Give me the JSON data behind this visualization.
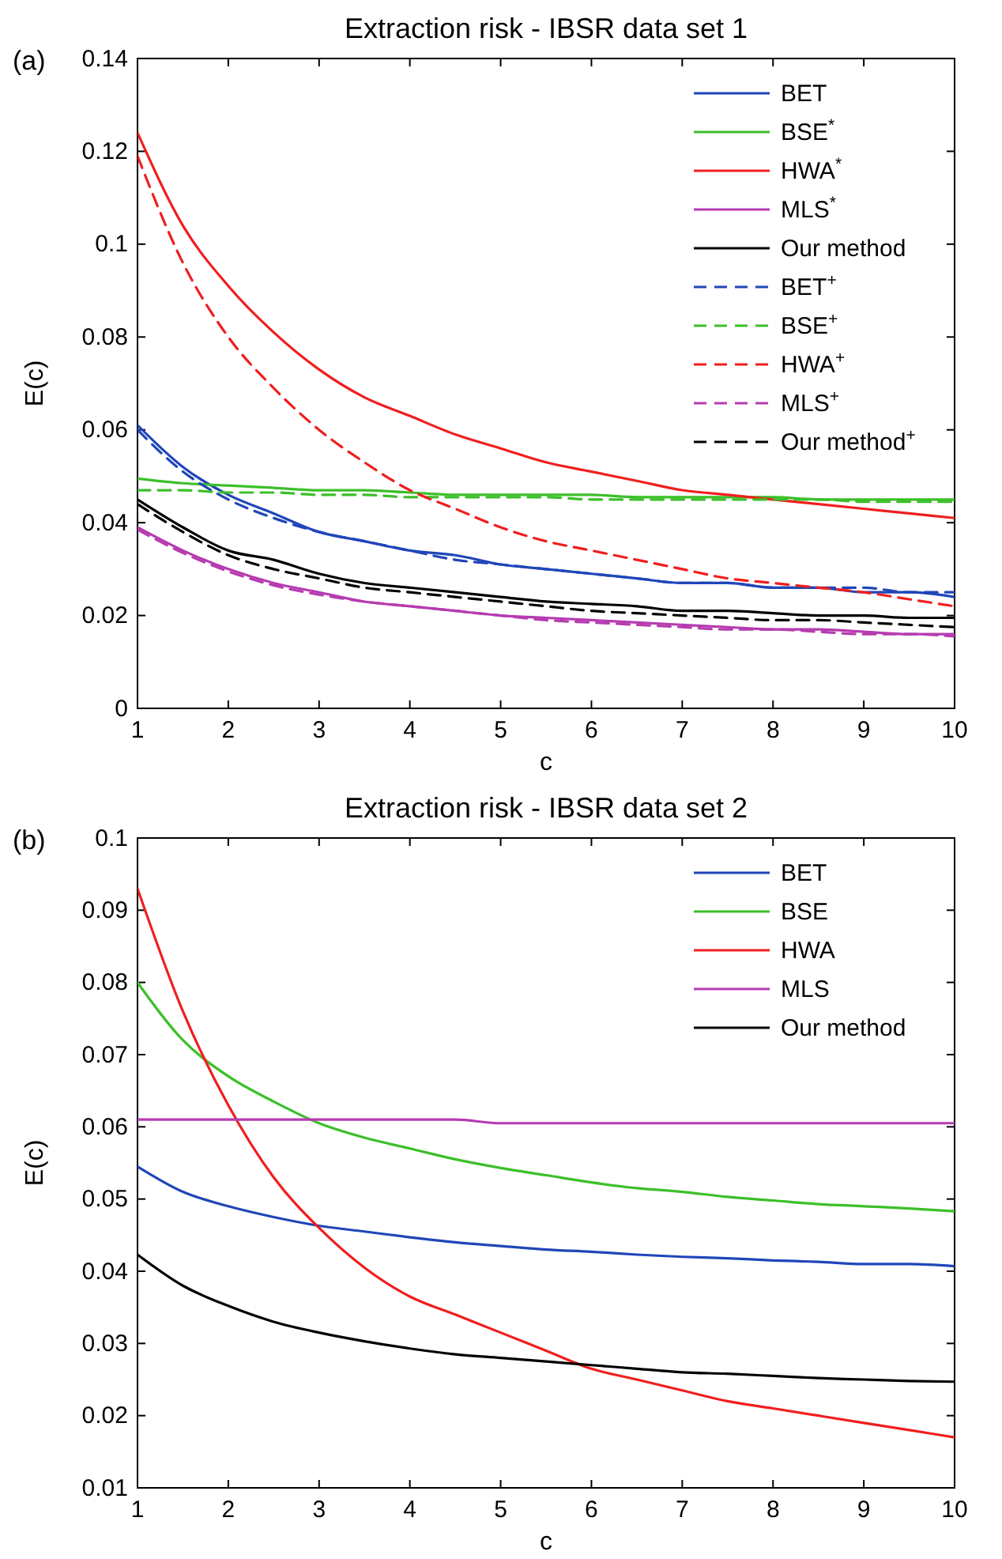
{
  "chart_data": [
    {
      "type": "line",
      "title": "Extraction risk - IBSR data set 1",
      "xlabel": "c",
      "ylabel": "E(c)",
      "annotations": [
        "(a)"
      ],
      "x": [
        1,
        1.5,
        2,
        2.5,
        3,
        3.5,
        4,
        4.5,
        5,
        5.5,
        6,
        6.5,
        7,
        7.5,
        8,
        8.5,
        9,
        9.5,
        10
      ],
      "xlim": [
        1,
        10
      ],
      "xticks": [
        1,
        2,
        3,
        4,
        5,
        6,
        7,
        8,
        9,
        10
      ],
      "ylim": [
        0,
        0.14
      ],
      "yticks": [
        0,
        0.02,
        0.04,
        0.06,
        0.08,
        0.1,
        0.12,
        0.14
      ],
      "legend": "top right",
      "grid": false,
      "series": [
        {
          "name": "BET",
          "color": "#2046b8",
          "line_style": "solid",
          "values": [
            0.061,
            0.052,
            0.046,
            0.042,
            0.038,
            0.036,
            0.034,
            0.033,
            0.031,
            0.03,
            0.029,
            0.028,
            0.027,
            0.027,
            0.026,
            0.026,
            0.025,
            0.025,
            0.024
          ]
        },
        {
          "name": "BSE$^{*}$",
          "color": "#3cbf2a",
          "line_style": "solid",
          "values": [
            0.0495,
            0.0485,
            0.048,
            0.0475,
            0.047,
            0.047,
            0.0465,
            0.046,
            0.046,
            0.046,
            0.046,
            0.0455,
            0.0455,
            0.0455,
            0.0455,
            0.045,
            0.045,
            0.045,
            0.045
          ]
        },
        {
          "name": "HWA$^{*}$",
          "color": "#f01e1e",
          "line_style": "solid",
          "values": [
            0.124,
            0.104,
            0.091,
            0.081,
            0.073,
            0.067,
            0.063,
            0.059,
            0.056,
            0.053,
            0.051,
            0.049,
            0.047,
            0.046,
            0.045,
            0.044,
            0.043,
            0.042,
            0.041
          ]
        },
        {
          "name": "MLS$^{*}$",
          "color": "#b63cb0",
          "line_style": "solid",
          "values": [
            0.039,
            0.034,
            0.03,
            0.027,
            0.025,
            0.023,
            0.022,
            0.021,
            0.02,
            0.0195,
            0.019,
            0.0185,
            0.018,
            0.0175,
            0.017,
            0.017,
            0.0165,
            0.016,
            0.016
          ]
        },
        {
          "name": "Our method",
          "color": "#000000",
          "line_style": "solid",
          "values": [
            0.045,
            0.039,
            0.034,
            0.032,
            0.029,
            0.027,
            0.026,
            0.025,
            0.024,
            0.023,
            0.0225,
            0.022,
            0.021,
            0.021,
            0.0205,
            0.02,
            0.02,
            0.0195,
            0.0195
          ]
        },
        {
          "name": "BET$^{+}$",
          "color": "#2046b8",
          "line_style": "dashed",
          "values": [
            0.06,
            0.051,
            0.045,
            0.041,
            0.038,
            0.036,
            0.034,
            0.032,
            0.031,
            0.03,
            0.029,
            0.028,
            0.027,
            0.027,
            0.026,
            0.026,
            0.026,
            0.025,
            0.025
          ]
        },
        {
          "name": "BSE$^{+}$",
          "color": "#3cbf2a",
          "line_style": "dashed",
          "values": [
            0.047,
            0.047,
            0.0465,
            0.0465,
            0.046,
            0.046,
            0.0455,
            0.0455,
            0.0455,
            0.0455,
            0.045,
            0.045,
            0.045,
            0.045,
            0.045,
            0.045,
            0.0445,
            0.0445,
            0.0445
          ]
        },
        {
          "name": "HWA$^{+}$",
          "color": "#f01e1e",
          "line_style": "dashed",
          "values": [
            0.119,
            0.096,
            0.08,
            0.069,
            0.06,
            0.053,
            0.047,
            0.043,
            0.039,
            0.036,
            0.034,
            0.032,
            0.03,
            0.028,
            0.027,
            0.026,
            0.025,
            0.0235,
            0.022
          ]
        },
        {
          "name": "MLS$^{+}$",
          "color": "#b63cb0",
          "line_style": "dashed",
          "values": [
            0.0385,
            0.0335,
            0.0295,
            0.0265,
            0.0245,
            0.023,
            0.022,
            0.021,
            0.02,
            0.019,
            0.0185,
            0.018,
            0.0175,
            0.017,
            0.017,
            0.0165,
            0.016,
            0.016,
            0.0155
          ]
        },
        {
          "name": "Our method$^{+}$",
          "color": "#000000",
          "line_style": "dashed",
          "values": [
            0.044,
            0.038,
            0.033,
            0.03,
            0.028,
            0.026,
            0.025,
            0.024,
            0.023,
            0.022,
            0.021,
            0.0205,
            0.02,
            0.0195,
            0.019,
            0.019,
            0.0185,
            0.018,
            0.0175
          ]
        }
      ]
    },
    {
      "type": "line",
      "title": "Extraction risk - IBSR data set 2",
      "xlabel": "c",
      "ylabel": "E(c)",
      "annotations": [
        "(b)"
      ],
      "x": [
        1,
        1.5,
        2,
        2.5,
        3,
        3.5,
        4,
        4.5,
        5,
        5.5,
        6,
        6.5,
        7,
        7.5,
        8,
        8.5,
        9,
        9.5,
        10
      ],
      "xlim": [
        1,
        10
      ],
      "xticks": [
        1,
        2,
        3,
        4,
        5,
        6,
        7,
        8,
        9,
        10
      ],
      "ylim": [
        0.01,
        0.1
      ],
      "yticks": [
        0.01,
        0.02,
        0.03,
        0.04,
        0.05,
        0.06,
        0.07,
        0.08,
        0.09,
        0.1
      ],
      "legend": "top right",
      "grid": false,
      "series": [
        {
          "name": "BET",
          "color": "#2046b8",
          "line_style": "solid",
          "values": [
            0.0545,
            0.051,
            0.049,
            0.0475,
            0.0463,
            0.0455,
            0.0447,
            0.044,
            0.0435,
            0.043,
            0.0427,
            0.0423,
            0.042,
            0.0418,
            0.0415,
            0.0413,
            0.041,
            0.041,
            0.0407
          ]
        },
        {
          "name": "BSE",
          "color": "#3cbf2a",
          "line_style": "solid",
          "values": [
            0.08,
            0.072,
            0.067,
            0.0635,
            0.0605,
            0.0585,
            0.057,
            0.0555,
            0.0543,
            0.0533,
            0.0523,
            0.0515,
            0.051,
            0.0503,
            0.0498,
            0.0493,
            0.049,
            0.0487,
            0.0483
          ]
        },
        {
          "name": "HWA",
          "color": "#f01e1e",
          "line_style": "solid",
          "values": [
            0.093,
            0.076,
            0.063,
            0.053,
            0.046,
            0.0405,
            0.0365,
            0.034,
            0.0315,
            0.029,
            0.0265,
            0.025,
            0.0235,
            0.022,
            0.021,
            0.02,
            0.019,
            0.018,
            0.017
          ]
        },
        {
          "name": "MLS",
          "color": "#b63cb0",
          "line_style": "solid",
          "values": [
            0.061,
            0.061,
            0.061,
            0.061,
            0.061,
            0.061,
            0.061,
            0.061,
            0.0605,
            0.0605,
            0.0605,
            0.0605,
            0.0605,
            0.0605,
            0.0605,
            0.0605,
            0.0605,
            0.0605,
            0.0605
          ]
        },
        {
          "name": "Our method",
          "color": "#000000",
          "line_style": "solid",
          "values": [
            0.0423,
            0.038,
            0.0352,
            0.033,
            0.0315,
            0.0303,
            0.0293,
            0.0285,
            0.028,
            0.0275,
            0.027,
            0.0265,
            0.026,
            0.0258,
            0.0255,
            0.0252,
            0.025,
            0.0248,
            0.0247
          ]
        }
      ]
    }
  ]
}
